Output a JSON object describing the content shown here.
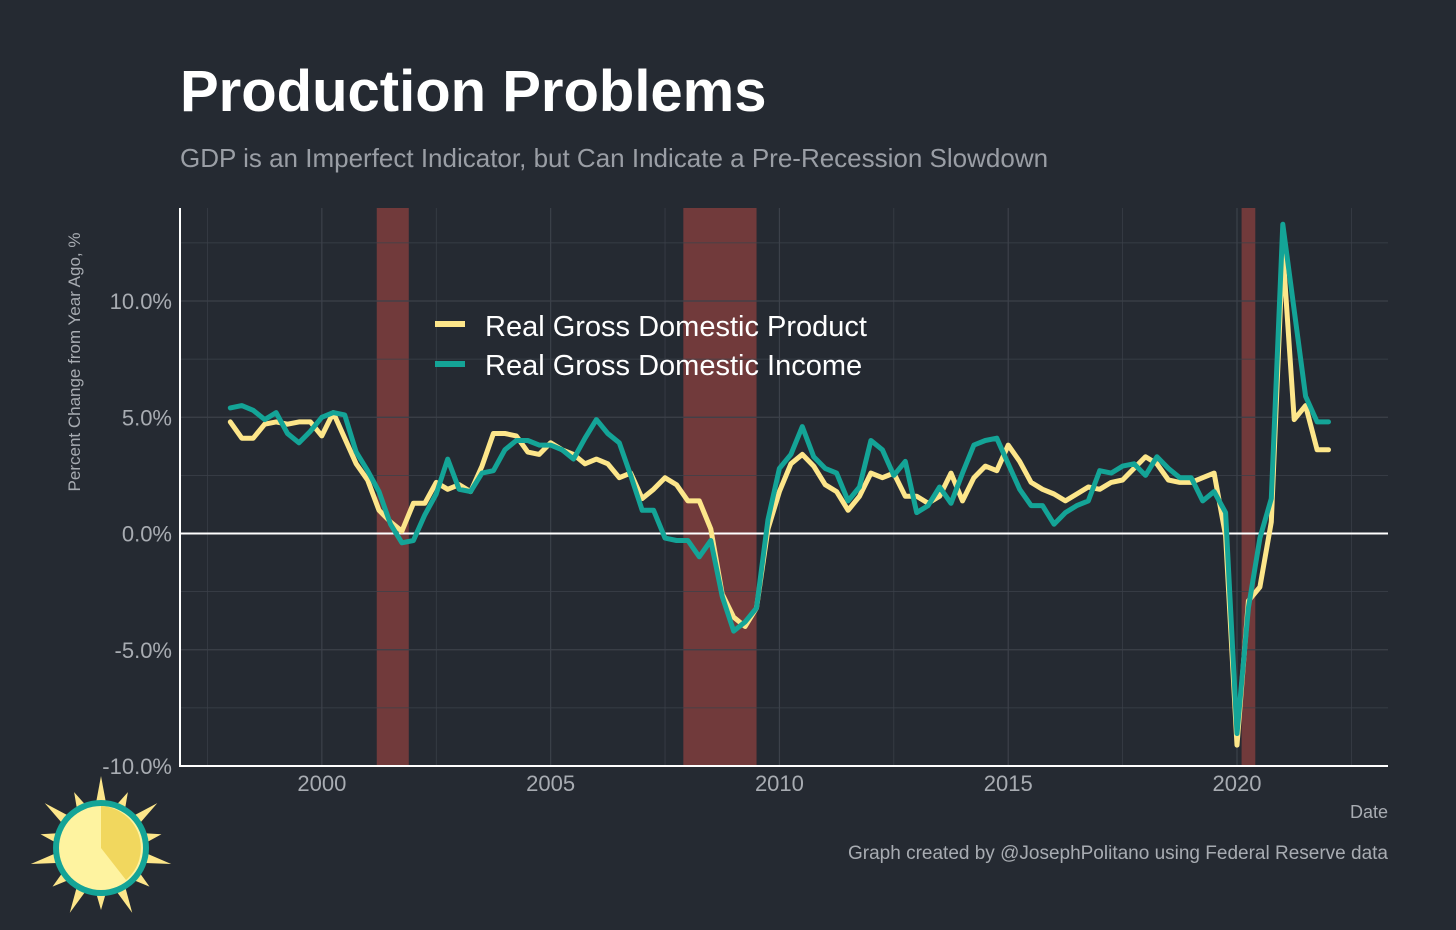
{
  "title": "Production Problems",
  "subtitle": "GDP is an Imperfect Indicator, but Can Indicate a Pre-Recession Slowdown",
  "caption": "Graph created by @JosephPolitano using Federal Reserve data",
  "colors": {
    "background": "#252a32",
    "gdp": "#fde68a",
    "gdi": "#14a497",
    "recession": "#7a3c3c",
    "grid": "#3c414a",
    "axis": "#ffffff"
  },
  "logo": {
    "icon": "sun-icon"
  },
  "chart_data": {
    "type": "line",
    "xlabel": "Date",
    "ylabel": "Percent Change from Year Ago, %",
    "xlim": [
      1996.9,
      2023.3
    ],
    "ylim": [
      -10,
      14
    ],
    "x_ticks": [
      {
        "value": 2000,
        "label": "2000"
      },
      {
        "value": 2005,
        "label": "2005"
      },
      {
        "value": 2010,
        "label": "2010"
      },
      {
        "value": 2015,
        "label": "2015"
      },
      {
        "value": 2020,
        "label": "2020"
      }
    ],
    "y_ticks": [
      {
        "value": -10,
        "label": "-10.0%"
      },
      {
        "value": -5,
        "label": "-5.0%"
      },
      {
        "value": 0,
        "label": "0.0%"
      },
      {
        "value": 5,
        "label": "5.0%"
      },
      {
        "value": 10,
        "label": "10.0%"
      }
    ],
    "grid": true,
    "legend_position": "top-left",
    "recessions": [
      {
        "start": 2001.2,
        "end": 2001.9
      },
      {
        "start": 2007.9,
        "end": 2009.5
      },
      {
        "start": 2020.1,
        "end": 2020.4
      }
    ],
    "series": [
      {
        "name": "Real Gross Domestic Product",
        "color": "#fde68a",
        "x": [
          1998.0,
          1998.25,
          1998.5,
          1998.75,
          1999.0,
          1999.25,
          1999.5,
          1999.75,
          2000.0,
          2000.25,
          2000.5,
          2000.75,
          2001.0,
          2001.25,
          2001.5,
          2001.75,
          2002.0,
          2002.25,
          2002.5,
          2002.75,
          2003.0,
          2003.25,
          2003.5,
          2003.75,
          2004.0,
          2004.25,
          2004.5,
          2004.75,
          2005.0,
          2005.25,
          2005.5,
          2005.75,
          2006.0,
          2006.25,
          2006.5,
          2006.75,
          2007.0,
          2007.25,
          2007.5,
          2007.75,
          2008.0,
          2008.25,
          2008.5,
          2008.75,
          2009.0,
          2009.25,
          2009.5,
          2009.75,
          2010.0,
          2010.25,
          2010.5,
          2010.75,
          2011.0,
          2011.25,
          2011.5,
          2011.75,
          2012.0,
          2012.25,
          2012.5,
          2012.75,
          2013.0,
          2013.25,
          2013.5,
          2013.75,
          2014.0,
          2014.25,
          2014.5,
          2014.75,
          2015.0,
          2015.25,
          2015.5,
          2015.75,
          2016.0,
          2016.25,
          2016.5,
          2016.75,
          2017.0,
          2017.25,
          2017.5,
          2017.75,
          2018.0,
          2018.25,
          2018.5,
          2018.75,
          2019.0,
          2019.25,
          2019.5,
          2019.75,
          2020.0,
          2020.25,
          2020.5,
          2020.75,
          2021.0,
          2021.25,
          2021.5,
          2021.75,
          2022.0
        ],
        "values": [
          4.8,
          4.1,
          4.1,
          4.7,
          4.8,
          4.7,
          4.8,
          4.8,
          4.2,
          5.2,
          4.1,
          3.0,
          2.3,
          1.0,
          0.5,
          0.1,
          1.3,
          1.3,
          2.2,
          1.9,
          2.1,
          1.8,
          2.9,
          4.3,
          4.3,
          4.2,
          3.5,
          3.4,
          3.9,
          3.6,
          3.4,
          3.0,
          3.2,
          3.0,
          2.4,
          2.6,
          1.5,
          1.9,
          2.4,
          2.1,
          1.4,
          1.4,
          0.2,
          -2.6,
          -3.6,
          -4.0,
          -3.2,
          0.2,
          1.8,
          3.0,
          3.4,
          2.9,
          2.1,
          1.8,
          1.0,
          1.6,
          2.6,
          2.4,
          2.6,
          1.6,
          1.6,
          1.3,
          1.6,
          2.6,
          1.4,
          2.4,
          2.9,
          2.7,
          3.8,
          3.1,
          2.2,
          1.9,
          1.7,
          1.4,
          1.7,
          2.0,
          1.9,
          2.2,
          2.3,
          2.8,
          3.3,
          3.0,
          2.3,
          2.2,
          2.2,
          2.4,
          2.6,
          -0.1,
          -9.1,
          -2.9,
          -2.3,
          0.5,
          12.2,
          4.9,
          5.5,
          3.6,
          3.6
        ]
      },
      {
        "name": "Real Gross Domestic Income",
        "color": "#14a497",
        "x": [
          1998.0,
          1998.25,
          1998.5,
          1998.75,
          1999.0,
          1999.25,
          1999.5,
          1999.75,
          2000.0,
          2000.25,
          2000.5,
          2000.75,
          2001.0,
          2001.25,
          2001.5,
          2001.75,
          2002.0,
          2002.25,
          2002.5,
          2002.75,
          2003.0,
          2003.25,
          2003.5,
          2003.75,
          2004.0,
          2004.25,
          2004.5,
          2004.75,
          2005.0,
          2005.25,
          2005.5,
          2005.75,
          2006.0,
          2006.25,
          2006.5,
          2006.75,
          2007.0,
          2007.25,
          2007.5,
          2007.75,
          2008.0,
          2008.25,
          2008.5,
          2008.75,
          2009.0,
          2009.25,
          2009.5,
          2009.75,
          2010.0,
          2010.25,
          2010.5,
          2010.75,
          2011.0,
          2011.25,
          2011.5,
          2011.75,
          2012.0,
          2012.25,
          2012.5,
          2012.75,
          2013.0,
          2013.25,
          2013.5,
          2013.75,
          2014.0,
          2014.25,
          2014.5,
          2014.75,
          2015.0,
          2015.25,
          2015.5,
          2015.75,
          2016.0,
          2016.25,
          2016.5,
          2016.75,
          2017.0,
          2017.25,
          2017.5,
          2017.75,
          2018.0,
          2018.25,
          2018.5,
          2018.75,
          2019.0,
          2019.25,
          2019.5,
          2019.75,
          2020.0,
          2020.25,
          2020.5,
          2020.75,
          2021.0,
          2021.25,
          2021.5,
          2021.75,
          2022.0
        ],
        "values": [
          5.4,
          5.5,
          5.3,
          4.9,
          5.2,
          4.3,
          3.9,
          4.4,
          5.0,
          5.2,
          5.1,
          3.5,
          2.7,
          1.8,
          0.4,
          -0.4,
          -0.3,
          0.8,
          1.7,
          3.2,
          1.9,
          1.8,
          2.6,
          2.7,
          3.6,
          4.0,
          4.0,
          3.8,
          3.8,
          3.6,
          3.2,
          4.1,
          4.9,
          4.3,
          3.9,
          2.5,
          1.0,
          1.0,
          -0.2,
          -0.3,
          -0.3,
          -1.0,
          -0.3,
          -2.7,
          -4.2,
          -3.8,
          -3.2,
          0.6,
          2.8,
          3.4,
          4.6,
          3.3,
          2.8,
          2.6,
          1.4,
          2.0,
          4.0,
          3.6,
          2.5,
          3.1,
          0.9,
          1.2,
          2.0,
          1.3,
          2.6,
          3.8,
          4.0,
          4.1,
          3.0,
          1.9,
          1.2,
          1.2,
          0.4,
          0.9,
          1.2,
          1.4,
          2.7,
          2.6,
          2.9,
          3.0,
          2.5,
          3.3,
          2.8,
          2.4,
          2.4,
          1.4,
          1.8,
          0.9,
          -8.6,
          -3.2,
          -0.2,
          1.5,
          13.3,
          9.6,
          5.9,
          4.8,
          4.8
        ]
      }
    ]
  }
}
